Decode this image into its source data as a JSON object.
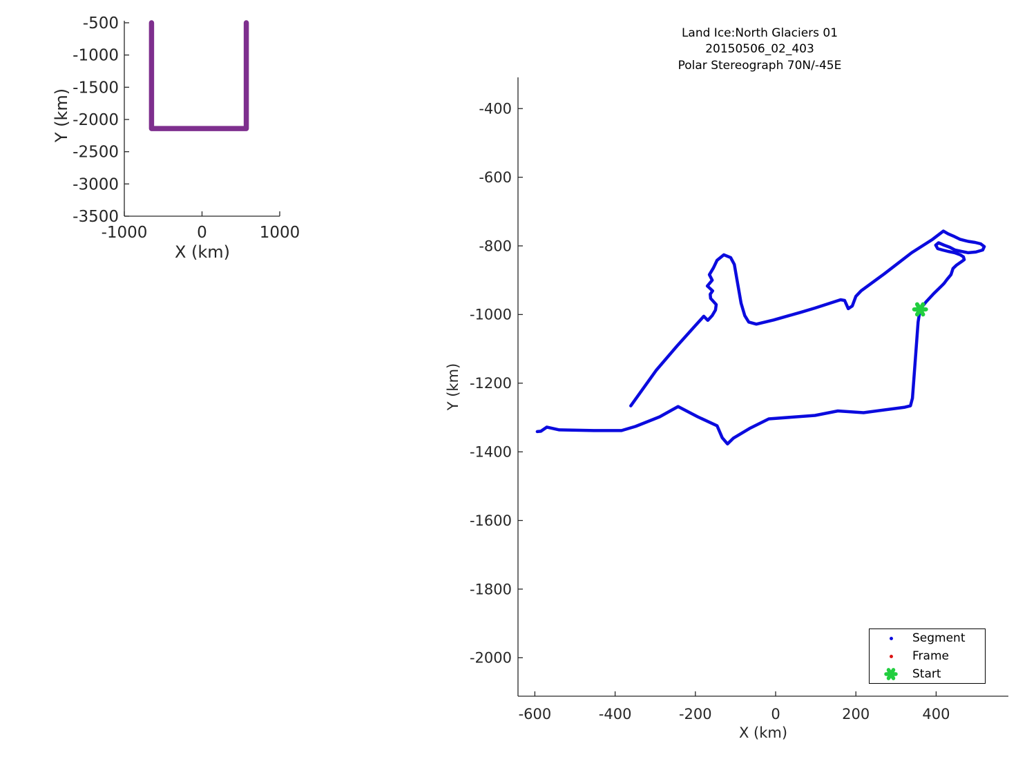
{
  "figure": {
    "background": "#FFFFFF",
    "axis_color": "#262626"
  },
  "chart_data": [
    {
      "id": "overview",
      "type": "line",
      "title": "",
      "xlabel": "X (km)",
      "ylabel": "Y (km)",
      "xlim": [
        -1000,
        1000
      ],
      "ylim": [
        -3500,
        -468
      ],
      "x_ticks": [
        "-1000",
        "0",
        "1000"
      ],
      "y_ticks": [
        "-500",
        "-1000",
        "-1500",
        "-2000",
        "-2500",
        "-3000",
        "-3500"
      ],
      "grid": false,
      "legend_position": "none",
      "series": [
        {
          "name": "mission-coverage-outline",
          "color": "#7E2F8E",
          "line_width": 7.5,
          "points": [
            [
              -650,
              -500
            ],
            [
              -650,
              -2140
            ],
            [
              570,
              -2140
            ],
            [
              570,
              -500
            ]
          ]
        }
      ]
    },
    {
      "id": "flight",
      "type": "line",
      "title_lines": [
        "Land Ice:North Glaciers 01",
        "20150506_02_403",
        "Polar Stereograph 70N/-45E"
      ],
      "xlabel": "X (km)",
      "ylabel": "Y (km)",
      "xlim": [
        -642,
        580
      ],
      "ylim": [
        -2112,
        -309
      ],
      "x_ticks": [
        "-600",
        "-400",
        "-200",
        "0",
        "200",
        "400"
      ],
      "y_ticks": [
        "-400",
        "-600",
        "-800",
        "-1000",
        "-1200",
        "-1400",
        "-1600",
        "-1800",
        "-2000"
      ],
      "grid": false,
      "legend_position": "bottom-right",
      "series": [
        {
          "name": "segment-track",
          "color": "#0B0BDE",
          "line_width": 4.5,
          "points": [
            [
              -361,
              -1266
            ],
            [
              -298,
              -1163
            ],
            [
              -246,
              -1092
            ],
            [
              -203,
              -1036
            ],
            [
              -179,
              -1005
            ],
            [
              -169,
              -1017
            ],
            [
              -158,
              -1003
            ],
            [
              -150,
              -987
            ],
            [
              -148,
              -971
            ],
            [
              -162,
              -953
            ],
            [
              -163,
              -941
            ],
            [
              -157,
              -931
            ],
            [
              -170,
              -917
            ],
            [
              -158,
              -900
            ],
            [
              -165,
              -884
            ],
            [
              -155,
              -864
            ],
            [
              -146,
              -842
            ],
            [
              -129,
              -826
            ],
            [
              -112,
              -834
            ],
            [
              -103,
              -854
            ],
            [
              -95,
              -907
            ],
            [
              -86,
              -967
            ],
            [
              -77,
              -1003
            ],
            [
              -67,
              -1022
            ],
            [
              -48,
              -1028
            ],
            [
              -5,
              -1016
            ],
            [
              64,
              -993
            ],
            [
              98,
              -981
            ],
            [
              162,
              -957
            ],
            [
              172,
              -959
            ],
            [
              181,
              -983
            ],
            [
              191,
              -975
            ],
            [
              200,
              -947
            ],
            [
              213,
              -931
            ],
            [
              270,
              -882
            ],
            [
              339,
              -820
            ],
            [
              391,
              -781
            ],
            [
              418,
              -757
            ],
            [
              430,
              -765
            ],
            [
              446,
              -773
            ],
            [
              460,
              -781
            ],
            [
              480,
              -787
            ],
            [
              497,
              -790
            ],
            [
              511,
              -794
            ],
            [
              520,
              -802
            ],
            [
              516,
              -812
            ],
            [
              499,
              -818
            ],
            [
              480,
              -820
            ],
            [
              463,
              -816
            ],
            [
              447,
              -812
            ],
            [
              434,
              -804
            ],
            [
              420,
              -798
            ],
            [
              406,
              -791
            ],
            [
              399,
              -798
            ],
            [
              404,
              -808
            ],
            [
              416,
              -812
            ],
            [
              430,
              -816
            ],
            [
              446,
              -820
            ],
            [
              460,
              -826
            ],
            [
              468,
              -832
            ],
            [
              470,
              -840
            ],
            [
              463,
              -846
            ],
            [
              451,
              -856
            ],
            [
              442,
              -866
            ],
            [
              437,
              -884
            ],
            [
              427,
              -898
            ],
            [
              420,
              -909
            ],
            [
              415,
              -915
            ],
            [
              394,
              -939
            ],
            [
              375,
              -963
            ],
            [
              360,
              -985
            ],
            [
              355,
              -1022
            ],
            [
              348,
              -1133
            ],
            [
              341,
              -1244
            ],
            [
              336,
              -1266
            ],
            [
              322,
              -1270
            ],
            [
              219,
              -1286
            ],
            [
              155,
              -1281
            ],
            [
              98,
              -1294
            ],
            [
              -17,
              -1304
            ],
            [
              -65,
              -1332
            ],
            [
              -105,
              -1360
            ],
            [
              -120,
              -1377
            ],
            [
              -133,
              -1359
            ],
            [
              -146,
              -1324
            ],
            [
              -194,
              -1298
            ],
            [
              -243,
              -1268
            ],
            [
              -289,
              -1298
            ],
            [
              -349,
              -1326
            ],
            [
              -384,
              -1338
            ],
            [
              -453,
              -1338
            ],
            [
              -539,
              -1336
            ],
            [
              -570,
              -1328
            ],
            [
              -585,
              -1340
            ],
            [
              -594,
              -1341
            ]
          ]
        }
      ],
      "start_marker": {
        "label": "Start",
        "point": [
          360,
          -985
        ],
        "color": "#22CE3F"
      },
      "legend": {
        "items": [
          {
            "label": "Segment",
            "marker": "dot",
            "color": "#0B0BDE"
          },
          {
            "label": "Frame",
            "marker": "dot",
            "color": "#DC1414"
          },
          {
            "label": "Start",
            "marker": "asterisk",
            "color": "#22CE3F"
          }
        ]
      }
    }
  ]
}
